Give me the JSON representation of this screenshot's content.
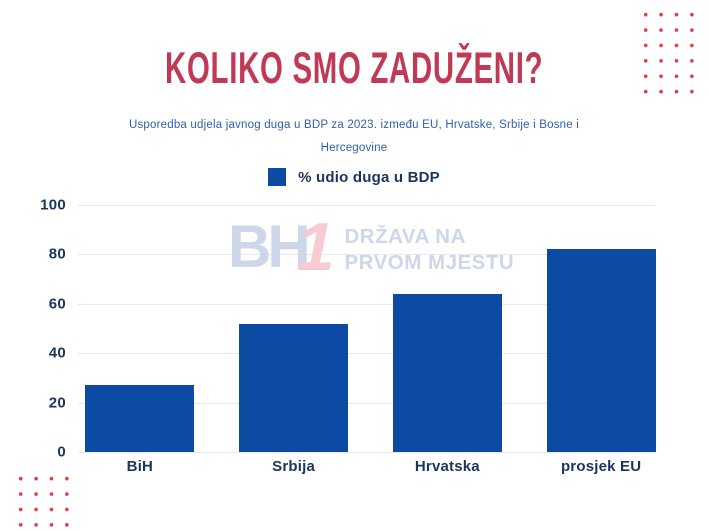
{
  "page": {
    "title": "KOLIKO SMO ZADUŽENI?",
    "subtitle_line1": "Usporedba udjela javnog duga u BDP za 2023. između EU, Hrvatske, Srbije i Bosne i",
    "subtitle_line2": "Hercegovine"
  },
  "legend": {
    "label": "% udio duga u BDP"
  },
  "watermark": {
    "logo_bh": "BH",
    "logo_one": "1",
    "line1": "DRŽAVA NA",
    "line2": "PRVOM MJESTU"
  },
  "chart_data": {
    "type": "bar",
    "title": "KOLIKO SMO ZADUŽENI?",
    "subtitle": "Usporedba udjela javnog duga u BDP za 2023. između EU, Hrvatske, Srbije i Bosne i Hercegovine",
    "categories": [
      "BiH",
      "Srbija",
      "Hrvatska",
      "prosjek EU"
    ],
    "values": [
      27,
      52,
      64,
      82
    ],
    "series_label": "% udio duga u BDP",
    "xlabel": "",
    "ylabel": "",
    "ylim": [
      0,
      100
    ],
    "yticks": [
      0,
      20,
      40,
      60,
      80,
      100
    ],
    "grid": true,
    "legend_position": "top",
    "bar_color": "#0d4aa3"
  },
  "colors": {
    "title_red": "#c03a55",
    "subtitle_blue": "#2e5fae",
    "bar_blue": "#0d4aa3",
    "navy_text": "#1b355f",
    "gridline": "#e8e8ec",
    "dot_red": "#e8393b",
    "watermark_blue": "#ccd7e9",
    "watermark_pink": "#f8cbd2",
    "background": "#ffffff"
  }
}
